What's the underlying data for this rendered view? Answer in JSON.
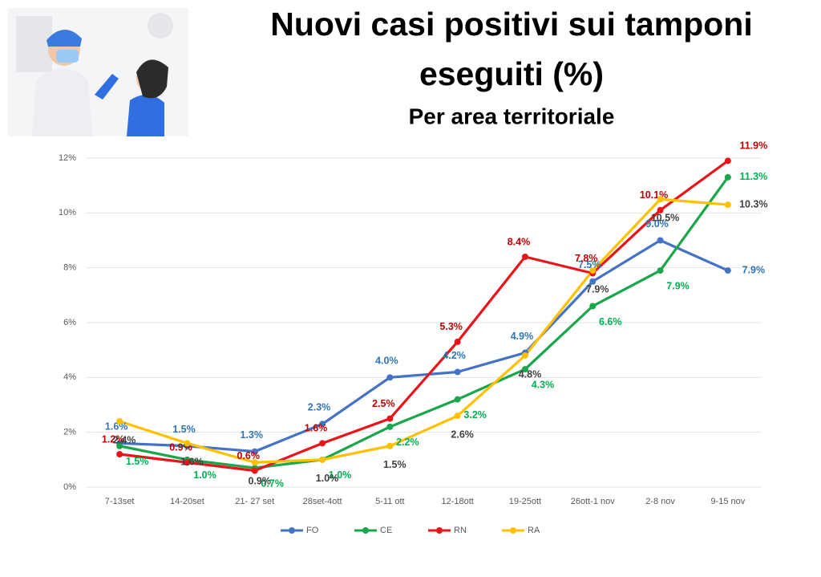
{
  "chart_data": {
    "type": "line",
    "title": "Nuovi casi positivi sui tamponi eseguiti (%)",
    "subtitle": "Per area territoriale",
    "categories": [
      "7-13set",
      "14-20set",
      "21- 27 set",
      "28set-4ott",
      "5-11 ott",
      "12-18ott",
      "19-25ott",
      "26ott-1 nov",
      "2-8 nov",
      "9-15 nov"
    ],
    "series": [
      {
        "name": "FO",
        "color": "#4472c4",
        "label_color": "#2e75b6",
        "values": [
          1.6,
          1.5,
          1.3,
          2.3,
          4.0,
          4.2,
          4.9,
          7.5,
          9.0,
          7.9
        ],
        "value_labels": [
          "1.6%",
          "1.5%",
          "1.3%",
          "2.3%",
          "4.0%",
          "4.2%",
          "4.9%",
          "7.5%",
          "9.0%",
          "7.9%"
        ]
      },
      {
        "name": "CE",
        "color": "#1aa64a",
        "label_color": "#00b050",
        "values": [
          1.5,
          1.0,
          0.7,
          1.0,
          2.2,
          3.2,
          4.3,
          6.6,
          7.9,
          11.3
        ],
        "value_labels": [
          "1.5%",
          "1.0%",
          "0.7%",
          "1.0%",
          "2.2%",
          "3.2%",
          "4.3%",
          "6.6%",
          "7.9%",
          "11.3%"
        ]
      },
      {
        "name": "RN",
        "color": "#e8141a",
        "label_color": "#c00000",
        "values": [
          1.2,
          0.9,
          0.6,
          1.6,
          2.5,
          5.3,
          8.4,
          7.8,
          10.1,
          11.9
        ],
        "value_labels": [
          "1.2%",
          "0.9%",
          "0.6%",
          "1.6%",
          "2.5%",
          "5.3%",
          "8.4%",
          "7.8%",
          "10.1%",
          "11.9%"
        ]
      },
      {
        "name": "RA",
        "color": "#ffc000",
        "label_color": "#404040",
        "values": [
          2.4,
          1.6,
          0.9,
          1.0,
          1.5,
          2.6,
          4.8,
          7.9,
          10.5,
          10.3
        ],
        "value_labels": [
          "2.4%",
          "1.6%",
          "0.9%",
          "1.0%",
          "1.5%",
          "2.6%",
          "4.8%",
          "7.9%",
          "10.5%",
          "10.3%"
        ]
      }
    ],
    "ylim": [
      0,
      12
    ],
    "yticks": [
      {
        "value": 0,
        "label": "0%"
      },
      {
        "value": 2,
        "label": "2%"
      },
      {
        "value": 4,
        "label": "4%"
      },
      {
        "value": 6,
        "label": "6%"
      },
      {
        "value": 8,
        "label": "8%"
      },
      {
        "value": 10,
        "label": "10%"
      },
      {
        "value": 12,
        "label": "12%"
      }
    ],
    "grid": true,
    "legend": "bottom"
  }
}
